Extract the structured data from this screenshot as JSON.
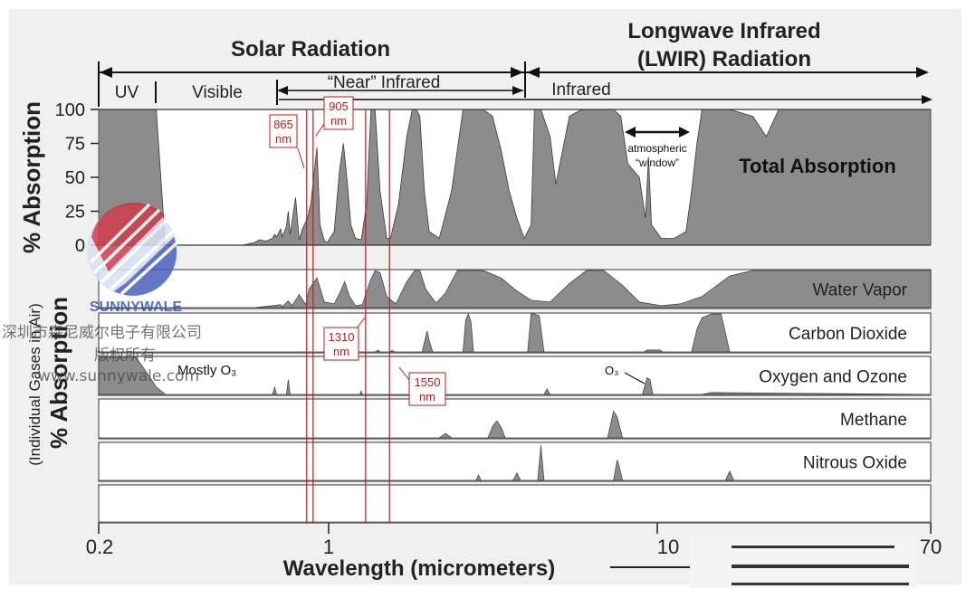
{
  "chart_data": {
    "type": "area",
    "xscale": "log",
    "xlim": [
      0.2,
      70
    ],
    "xlabel": "Wavelength (micrometers)",
    "xticks": [
      "0.2",
      "1",
      "10",
      "70"
    ],
    "colors": {
      "fill": "#8c8c8c",
      "marker": "#d21414",
      "panel_border": "#555555"
    },
    "bands": {
      "solar": "Solar Radiation",
      "longwave_line1": "Longwave Infrared",
      "longwave_line2": "(LWIR) Radiation",
      "uv": "UV",
      "visible": "Visible",
      "near_ir": "“Near” Infrared",
      "infrared": "Infrared"
    },
    "total": {
      "ylabel": "% Absorption",
      "yticks": [
        "100",
        "75",
        "50",
        "25",
        "0"
      ],
      "ylim": [
        0,
        100
      ],
      "label": "Total Absorption",
      "window_label_line1": "atmospheric",
      "window_label_line2": "“window”",
      "x": [
        0.2,
        0.25,
        0.29,
        0.3,
        0.32,
        0.4,
        0.55,
        0.6,
        0.62,
        0.65,
        0.68,
        0.69,
        0.7,
        0.72,
        0.73,
        0.75,
        0.76,
        0.77,
        0.8,
        0.82,
        0.84,
        0.87,
        0.89,
        0.93,
        0.95,
        0.98,
        1.0,
        1.05,
        1.09,
        1.12,
        1.15,
        1.18,
        1.22,
        1.27,
        1.32,
        1.36,
        1.4,
        1.45,
        1.52,
        1.56,
        1.65,
        1.75,
        1.82,
        1.87,
        1.92,
        1.98,
        2.05,
        2.2,
        2.4,
        2.6,
        2.7,
        2.8,
        3.0,
        3.2,
        3.4,
        3.6,
        3.8,
        4.0,
        4.2,
        4.3,
        4.5,
        4.8,
        5.0,
        5.5,
        6.0,
        6.5,
        7.0,
        7.5,
        7.9,
        8.3,
        9.0,
        9.4,
        9.6,
        9.8,
        10.5,
        11.5,
        12.5,
        13.0,
        13.5,
        14.0,
        15.0,
        17.0,
        20.0,
        22.0,
        24.0,
        26.0,
        70.0
      ],
      "values": [
        100,
        100,
        100,
        100,
        0,
        0,
        0,
        2,
        4,
        3,
        5,
        8,
        6,
        12,
        6,
        14,
        25,
        8,
        35,
        4,
        12,
        20,
        30,
        72,
        15,
        3,
        2,
        10,
        55,
        75,
        48,
        15,
        5,
        4,
        30,
        100,
        100,
        40,
        5,
        5,
        30,
        80,
        100,
        100,
        95,
        40,
        10,
        5,
        40,
        100,
        100,
        100,
        100,
        95,
        70,
        40,
        20,
        5,
        15,
        100,
        100,
        80,
        45,
        95,
        100,
        100,
        100,
        100,
        95,
        60,
        50,
        20,
        65,
        15,
        5,
        5,
        10,
        40,
        75,
        100,
        100,
        100,
        95,
        80,
        100,
        100,
        100
      ]
    },
    "panels": [
      {
        "label": "Water Vapor",
        "x": [
          0.2,
          0.6,
          0.68,
          0.72,
          0.73,
          0.76,
          0.78,
          0.82,
          0.86,
          0.88,
          0.93,
          0.98,
          1.05,
          1.1,
          1.13,
          1.17,
          1.22,
          1.28,
          1.35,
          1.4,
          1.45,
          1.52,
          1.62,
          1.75,
          1.85,
          1.92,
          2.0,
          2.15,
          2.3,
          2.5,
          2.7,
          3.0,
          3.4,
          3.8,
          4.2,
          4.8,
          5.5,
          6.2,
          7.0,
          8.0,
          9.0,
          10.5,
          12.0,
          14.0,
          17.0,
          20.0,
          70.0
        ],
        "values": [
          0,
          0,
          5,
          8,
          3,
          18,
          5,
          35,
          8,
          50,
          80,
          15,
          10,
          45,
          70,
          30,
          5,
          8,
          70,
          100,
          95,
          30,
          10,
          70,
          100,
          100,
          50,
          12,
          40,
          100,
          100,
          100,
          80,
          45,
          20,
          15,
          65,
          100,
          100,
          60,
          15,
          5,
          10,
          30,
          85,
          100,
          100
        ]
      },
      {
        "label": "Carbon Dioxide",
        "x": [
          0.2,
          1.2,
          1.4,
          1.43,
          1.45,
          1.55,
          1.58,
          1.6,
          1.95,
          2.0,
          2.02,
          2.05,
          2.1,
          2.6,
          2.65,
          2.7,
          2.75,
          2.8,
          4.1,
          4.2,
          4.3,
          4.45,
          4.6,
          7.0,
          9.3,
          9.5,
          10.4,
          10.6,
          13.0,
          13.5,
          14.0,
          15.0,
          16.0,
          17.0,
          70.0
        ],
        "values": [
          0,
          0,
          0,
          5,
          0,
          0,
          4,
          0,
          0,
          40,
          55,
          30,
          0,
          0,
          85,
          100,
          80,
          0,
          0,
          100,
          100,
          95,
          0,
          0,
          0,
          5,
          5,
          0,
          0,
          60,
          90,
          100,
          100,
          0,
          0
        ]
      },
      {
        "label": "Oxygen and Ozone",
        "annotation_mostly": "Mostly O₃",
        "annotation_o3": "O₃",
        "x": [
          0.2,
          0.22,
          0.26,
          0.28,
          0.3,
          0.32,
          0.6,
          0.68,
          0.69,
          0.7,
          0.75,
          0.76,
          0.77,
          1.26,
          1.27,
          1.28,
          4.6,
          4.7,
          4.8,
          9.2,
          9.5,
          9.7,
          9.9,
          10.2,
          14.0,
          15.0,
          70.0
        ],
        "values": [
          100,
          100,
          100,
          60,
          20,
          0,
          0,
          0,
          20,
          0,
          0,
          40,
          0,
          0,
          10,
          0,
          0,
          15,
          0,
          0,
          45,
          40,
          0,
          0,
          0,
          5,
          0
        ]
      },
      {
        "label": "Methane",
        "x": [
          0.2,
          2.2,
          2.3,
          2.4,
          3.1,
          3.2,
          3.3,
          3.4,
          3.5,
          7.2,
          7.5,
          7.7,
          8.0,
          70.0
        ],
        "values": [
          0,
          0,
          12,
          0,
          0,
          30,
          45,
          28,
          0,
          0,
          70,
          55,
          0,
          0
        ]
      },
      {
        "label": "Nitrous Oxide",
        "x": [
          0.2,
          2.85,
          2.9,
          2.95,
          3.7,
          3.8,
          3.9,
          4.4,
          4.5,
          4.6,
          7.5,
          7.7,
          7.8,
          8.0,
          16.5,
          17.0,
          17.5,
          70.0
        ],
        "values": [
          0,
          0,
          15,
          0,
          0,
          20,
          0,
          0,
          95,
          0,
          0,
          55,
          40,
          0,
          0,
          25,
          0,
          0
        ]
      },
      {
        "label": "",
        "x": [
          0.2,
          70.0
        ],
        "values": [
          0,
          0
        ]
      }
    ],
    "panels_ylabel_1": "% Absorption",
    "panels_ylabel_2": "(Individual Gases in Air)",
    "markers": [
      {
        "x": 0.865,
        "label_1": "865",
        "label_2": "nm"
      },
      {
        "x": 0.905,
        "label_1": "905",
        "label_2": "nm"
      },
      {
        "x": 1.31,
        "label_1": "1310",
        "label_2": "nm"
      },
      {
        "x": 1.55,
        "label_1": "1550",
        "label_2": "nm"
      }
    ]
  },
  "watermark": {
    "brand": "SUNNYWALE",
    "company": "深圳市森尼威尔电子有限公司",
    "rights": "版权所有",
    "url": "www.sunnywale.com"
  }
}
